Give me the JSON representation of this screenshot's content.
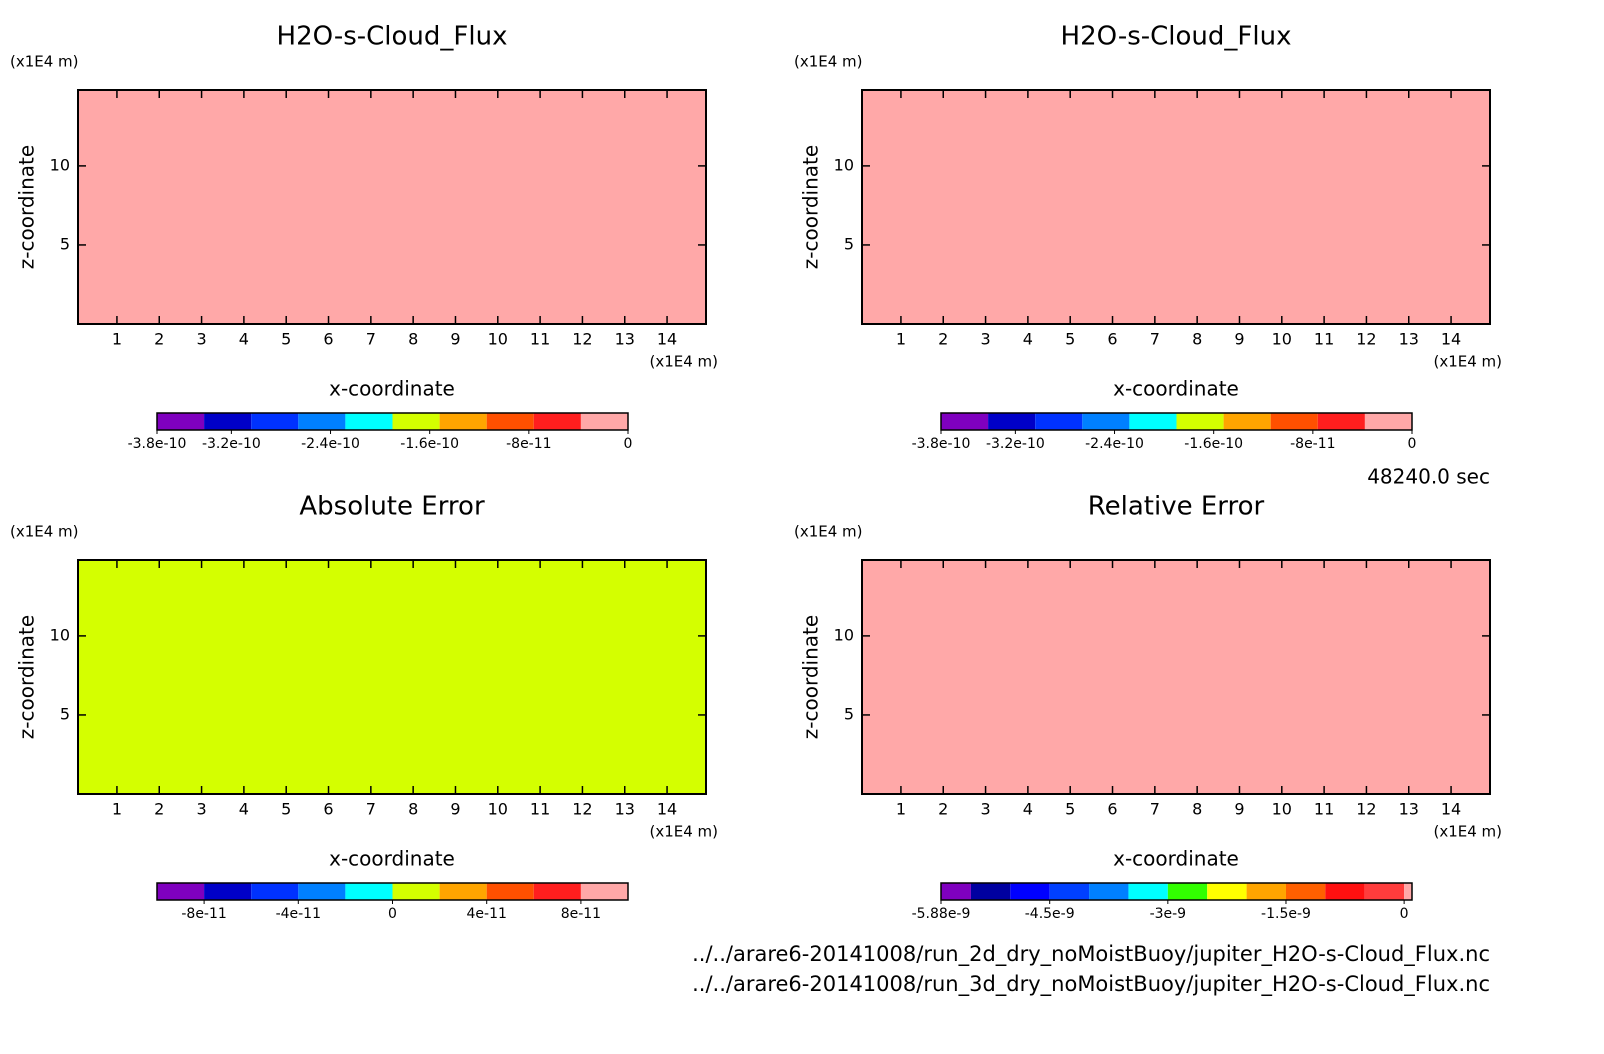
{
  "chart_data": [
    {
      "type": "contour",
      "title": "H2O-s-Cloud_Flux",
      "xlabel": "x-coordinate",
      "ylabel": "z-coordinate",
      "xunit": "(x1E4 m)",
      "yunit": "(x1E4 m)",
      "xlim": [
        0.08,
        14.92
      ],
      "ylim": [
        0,
        14.8
      ],
      "xticks": [
        1,
        2,
        3,
        4,
        5,
        6,
        7,
        8,
        9,
        10,
        11,
        12,
        13,
        14
      ],
      "yticks": [
        5,
        10
      ],
      "z": 0,
      "colorbar": {
        "levels": [
          -3.8e-10,
          -3.42e-10,
          -3.04e-10,
          -2.66e-10,
          -2.28e-10,
          -1.9e-10,
          -1.52e-10,
          -1.14e-10,
          -7.6e-11,
          -3.8e-11,
          0
        ],
        "colors": [
          "#7f00bf",
          "#0000c8",
          "#0032ff",
          "#0080ff",
          "#00ffff",
          "#d4ff00",
          "#ffa500",
          "#ff5000",
          "#ff1e1e",
          "#ffa8a8"
        ],
        "ticks": [
          -3.8e-10,
          -3.2e-10,
          -2.4e-10,
          -1.6e-10,
          -8e-11,
          0
        ]
      }
    },
    {
      "type": "contour",
      "title": "H2O-s-Cloud_Flux",
      "xlabel": "x-coordinate",
      "ylabel": "z-coordinate",
      "xunit": "(x1E4 m)",
      "yunit": "(x1E4 m)",
      "xlim": [
        0.08,
        14.92
      ],
      "ylim": [
        0,
        14.8
      ],
      "xticks": [
        1,
        2,
        3,
        4,
        5,
        6,
        7,
        8,
        9,
        10,
        11,
        12,
        13,
        14
      ],
      "yticks": [
        5,
        10
      ],
      "z": 0,
      "colorbar": {
        "levels": [
          -3.8e-10,
          -3.42e-10,
          -3.04e-10,
          -2.66e-10,
          -2.28e-10,
          -1.9e-10,
          -1.52e-10,
          -1.14e-10,
          -7.6e-11,
          -3.8e-11,
          0
        ],
        "colors": [
          "#7f00bf",
          "#0000c8",
          "#0032ff",
          "#0080ff",
          "#00ffff",
          "#d4ff00",
          "#ffa500",
          "#ff5000",
          "#ff1e1e",
          "#ffa8a8"
        ],
        "ticks": [
          -3.8e-10,
          -3.2e-10,
          -2.4e-10,
          -1.6e-10,
          -8e-11,
          0
        ]
      }
    },
    {
      "type": "contour",
      "title": "Absolute Error",
      "xlabel": "x-coordinate",
      "ylabel": "z-coordinate",
      "xunit": "(x1E4 m)",
      "yunit": "(x1E4 m)",
      "xlim": [
        0.08,
        14.92
      ],
      "ylim": [
        0,
        14.8
      ],
      "xticks": [
        1,
        2,
        3,
        4,
        5,
        6,
        7,
        8,
        9,
        10,
        11,
        12,
        13,
        14
      ],
      "yticks": [
        5,
        10
      ],
      "z": 0,
      "colorbar": {
        "levels": [
          -1e-10,
          -8e-11,
          -6e-11,
          -4e-11,
          -2e-11,
          0,
          2e-11,
          4e-11,
          6e-11,
          8e-11,
          1e-10
        ],
        "colors": [
          "#7f00bf",
          "#0000c8",
          "#0032ff",
          "#0080ff",
          "#00ffff",
          "#d4ff00",
          "#ffa500",
          "#ff5000",
          "#ff1e1e",
          "#ffa8a8"
        ],
        "ticks": [
          -8e-11,
          -4e-11,
          0,
          4e-11,
          8e-11
        ]
      }
    },
    {
      "type": "contour",
      "title": "Relative Error",
      "xlabel": "x-coordinate",
      "ylabel": "z-coordinate",
      "xunit": "(x1E4 m)",
      "yunit": "(x1E4 m)",
      "xlim": [
        0.08,
        14.92
      ],
      "ylim": [
        0,
        14.8
      ],
      "xticks": [
        1,
        2,
        3,
        4,
        5,
        6,
        7,
        8,
        9,
        10,
        11,
        12,
        13,
        14
      ],
      "yticks": [
        5,
        10
      ],
      "z": 0,
      "colorbar": {
        "levels": [
          -5.88e-09,
          -5.5e-09,
          -5e-09,
          -4.5e-09,
          -4e-09,
          -3.5e-09,
          -3e-09,
          -2.5e-09,
          -2e-09,
          -1.5e-09,
          -1e-09,
          -5e-10,
          0,
          1e-10
        ],
        "colors": [
          "#7f00bf",
          "#0000a0",
          "#0000ff",
          "#0040ff",
          "#0080ff",
          "#00ffff",
          "#32ff00",
          "#ffff00",
          "#ffa500",
          "#ff6000",
          "#ff1010",
          "#ff3c3c",
          "#ffa8a8"
        ],
        "ticks": [
          -5.88e-09,
          -4.5e-09,
          -3e-09,
          -1.5e-09,
          0
        ]
      }
    }
  ],
  "time": "48240.0 sec",
  "files": [
    "../../arare6-20141008/run_2d_dry_noMoistBuoy/jupiter_H2O-s-Cloud_Flux.nc",
    "../../arare6-20141008/run_3d_dry_noMoistBuoy/jupiter_H2O-s-Cloud_Flux.nc"
  ]
}
